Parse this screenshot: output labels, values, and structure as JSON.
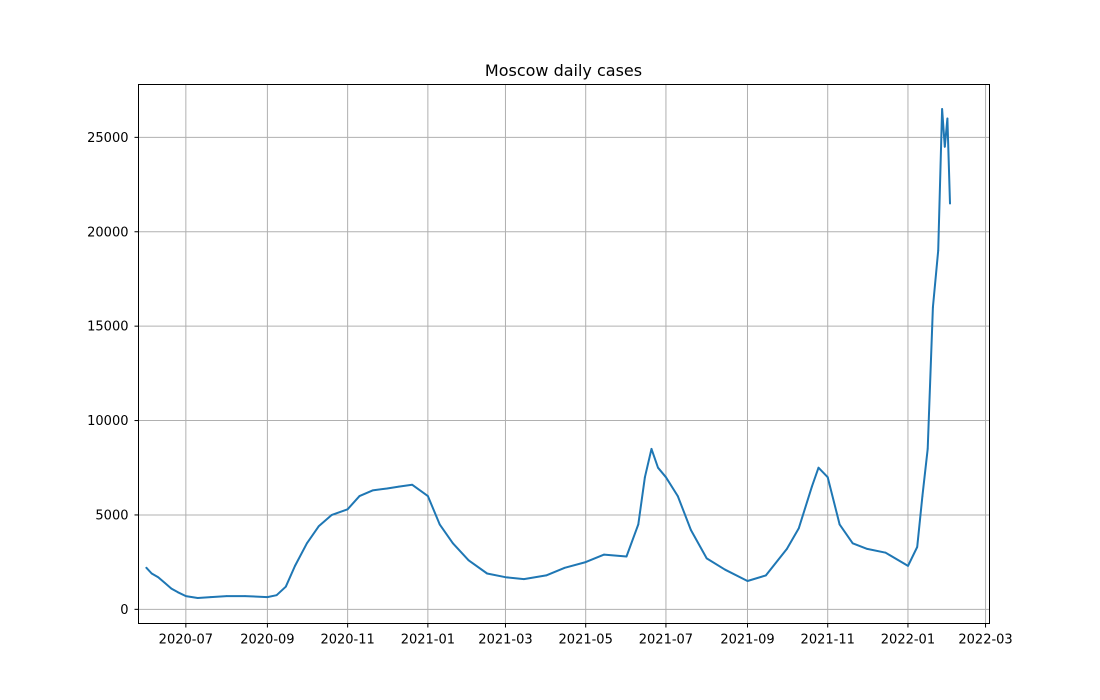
{
  "chart_data": {
    "type": "line",
    "title": "Moscow daily cases",
    "xlabel": "",
    "ylabel": "",
    "grid": true,
    "legend": "none",
    "xlim": [
      "2020-05-26",
      "2022-03-04"
    ],
    "ylim": [
      -750,
      27800
    ],
    "x_ticks": [
      "2020-07",
      "2020-09",
      "2020-11",
      "2021-01",
      "2021-03",
      "2021-05",
      "2021-07",
      "2021-09",
      "2021-11",
      "2022-01",
      "2022-03"
    ],
    "y_ticks": [
      0,
      5000,
      10000,
      15000,
      20000,
      25000
    ],
    "series": [
      {
        "color": "#1f77b4",
        "x": [
          "2020-06-01",
          "2020-06-05",
          "2020-06-10",
          "2020-06-15",
          "2020-06-20",
          "2020-06-25",
          "2020-07-01",
          "2020-07-10",
          "2020-07-20",
          "2020-08-01",
          "2020-08-15",
          "2020-09-01",
          "2020-09-08",
          "2020-09-15",
          "2020-09-22",
          "2020-10-01",
          "2020-10-10",
          "2020-10-20",
          "2020-11-01",
          "2020-11-10",
          "2020-11-20",
          "2020-12-01",
          "2020-12-10",
          "2020-12-20",
          "2021-01-01",
          "2021-01-10",
          "2021-01-20",
          "2021-02-01",
          "2021-02-15",
          "2021-03-01",
          "2021-03-15",
          "2021-04-01",
          "2021-04-15",
          "2021-05-01",
          "2021-05-15",
          "2021-06-01",
          "2021-06-10",
          "2021-06-15",
          "2021-06-20",
          "2021-06-25",
          "2021-07-01",
          "2021-07-10",
          "2021-07-20",
          "2021-08-01",
          "2021-08-15",
          "2021-09-01",
          "2021-09-15",
          "2021-10-01",
          "2021-10-10",
          "2021-10-20",
          "2021-10-25",
          "2021-11-01",
          "2021-11-10",
          "2021-11-20",
          "2021-12-01",
          "2021-12-15",
          "2022-01-01",
          "2022-01-08",
          "2022-01-12",
          "2022-01-16",
          "2022-01-20",
          "2022-01-24",
          "2022-01-27",
          "2022-01-29",
          "2022-01-31",
          "2022-02-02"
        ],
        "y": [
          2200,
          1900,
          1700,
          1400,
          1100,
          900,
          700,
          600,
          650,
          700,
          700,
          650,
          750,
          1200,
          2300,
          3500,
          4400,
          5000,
          5300,
          6000,
          6300,
          6400,
          6500,
          6600,
          6000,
          4500,
          3500,
          2600,
          1900,
          1700,
          1600,
          1800,
          2200,
          2500,
          2900,
          2800,
          4500,
          7000,
          8500,
          7500,
          7000,
          6000,
          4200,
          2700,
          2100,
          1500,
          1800,
          3200,
          4300,
          6500,
          7500,
          7000,
          4500,
          3500,
          3200,
          3000,
          2300,
          3300,
          6000,
          8500,
          16000,
          19000,
          26500,
          24500,
          26000,
          21500
        ]
      }
    ]
  }
}
